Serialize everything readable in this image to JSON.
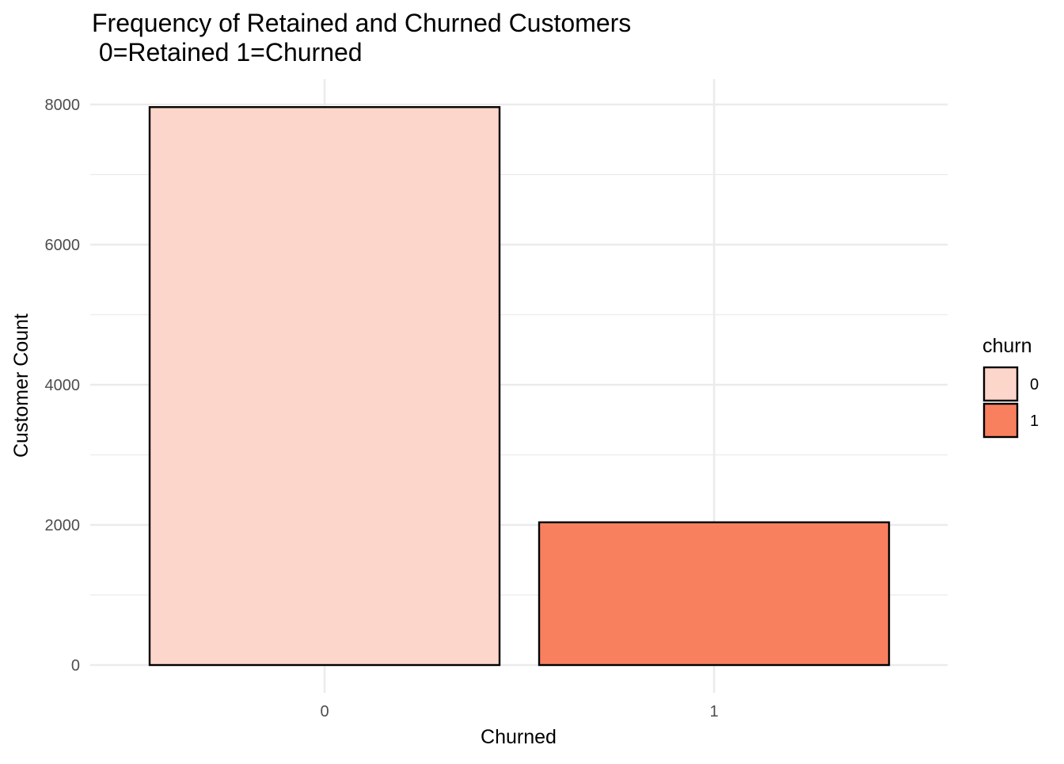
{
  "chart_data": {
    "type": "bar",
    "title_line1": "Frequency of Retained and Churned Customers",
    "title_line2": " 0=Retained 1=Churned",
    "xlabel": "Churned",
    "ylabel": "Customer Count",
    "categories": [
      "0",
      "1"
    ],
    "values": [
      7963,
      2037
    ],
    "ylim": [
      0,
      8000
    ],
    "yticks": [
      0,
      2000,
      4000,
      6000,
      8000
    ],
    "grid": true,
    "legend": {
      "title": "churn",
      "position": "right",
      "entries": [
        "0",
        "1"
      ]
    },
    "colors": [
      "#fcd6ca",
      "#f8805f"
    ],
    "bar_outline": "#000000"
  }
}
